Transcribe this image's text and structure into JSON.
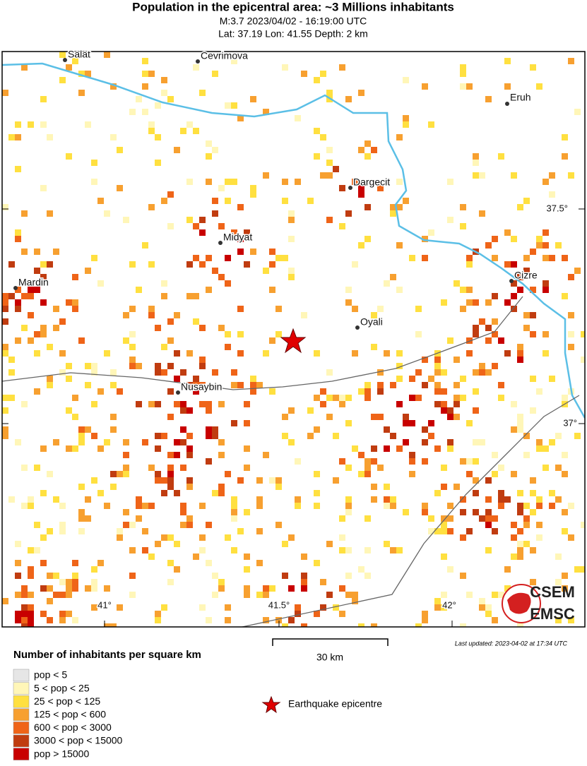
{
  "header": {
    "title": "Population in the epicentral area: ~3 Millions inhabitants",
    "line1": "M:3.7 2023/04/02 - 16:19:00 UTC",
    "line2": "Lat: 37.19 Lon: 41.55 Depth: 2 km"
  },
  "map": {
    "cities": [
      "Salat",
      "Cevrimova",
      "Eruh",
      "Dargecit",
      "Midyat",
      "Mardin",
      "Cizre",
      "Oyali",
      "Nusaybin"
    ],
    "lat_labels": [
      "37.5°",
      "37°"
    ],
    "lon_labels": [
      "41°",
      "41.5°",
      "42°"
    ],
    "scale_label": "30 km",
    "updated": "Last updated: 2023-04-02 at 17:34 UTC",
    "logo": [
      "CSEM",
      "EMSC"
    ]
  },
  "legend": {
    "title": "Number of inhabitants per square km",
    "items": [
      {
        "label": "pop < 5",
        "color": "#e6e6e6"
      },
      {
        "label": "5 < pop < 25",
        "color": "#fff6b8"
      },
      {
        "label": "25 < pop < 125",
        "color": "#ffe040"
      },
      {
        "label": "125 < pop < 600",
        "color": "#f7a030"
      },
      {
        "label": "600 < pop < 3000",
        "color": "#ef6418"
      },
      {
        "label": "3000 < pop < 15000",
        "color": "#c03c10"
      },
      {
        "label": "pop > 15000",
        "color": "#c80000"
      }
    ],
    "epicentre": "Earthquake epicentre"
  }
}
